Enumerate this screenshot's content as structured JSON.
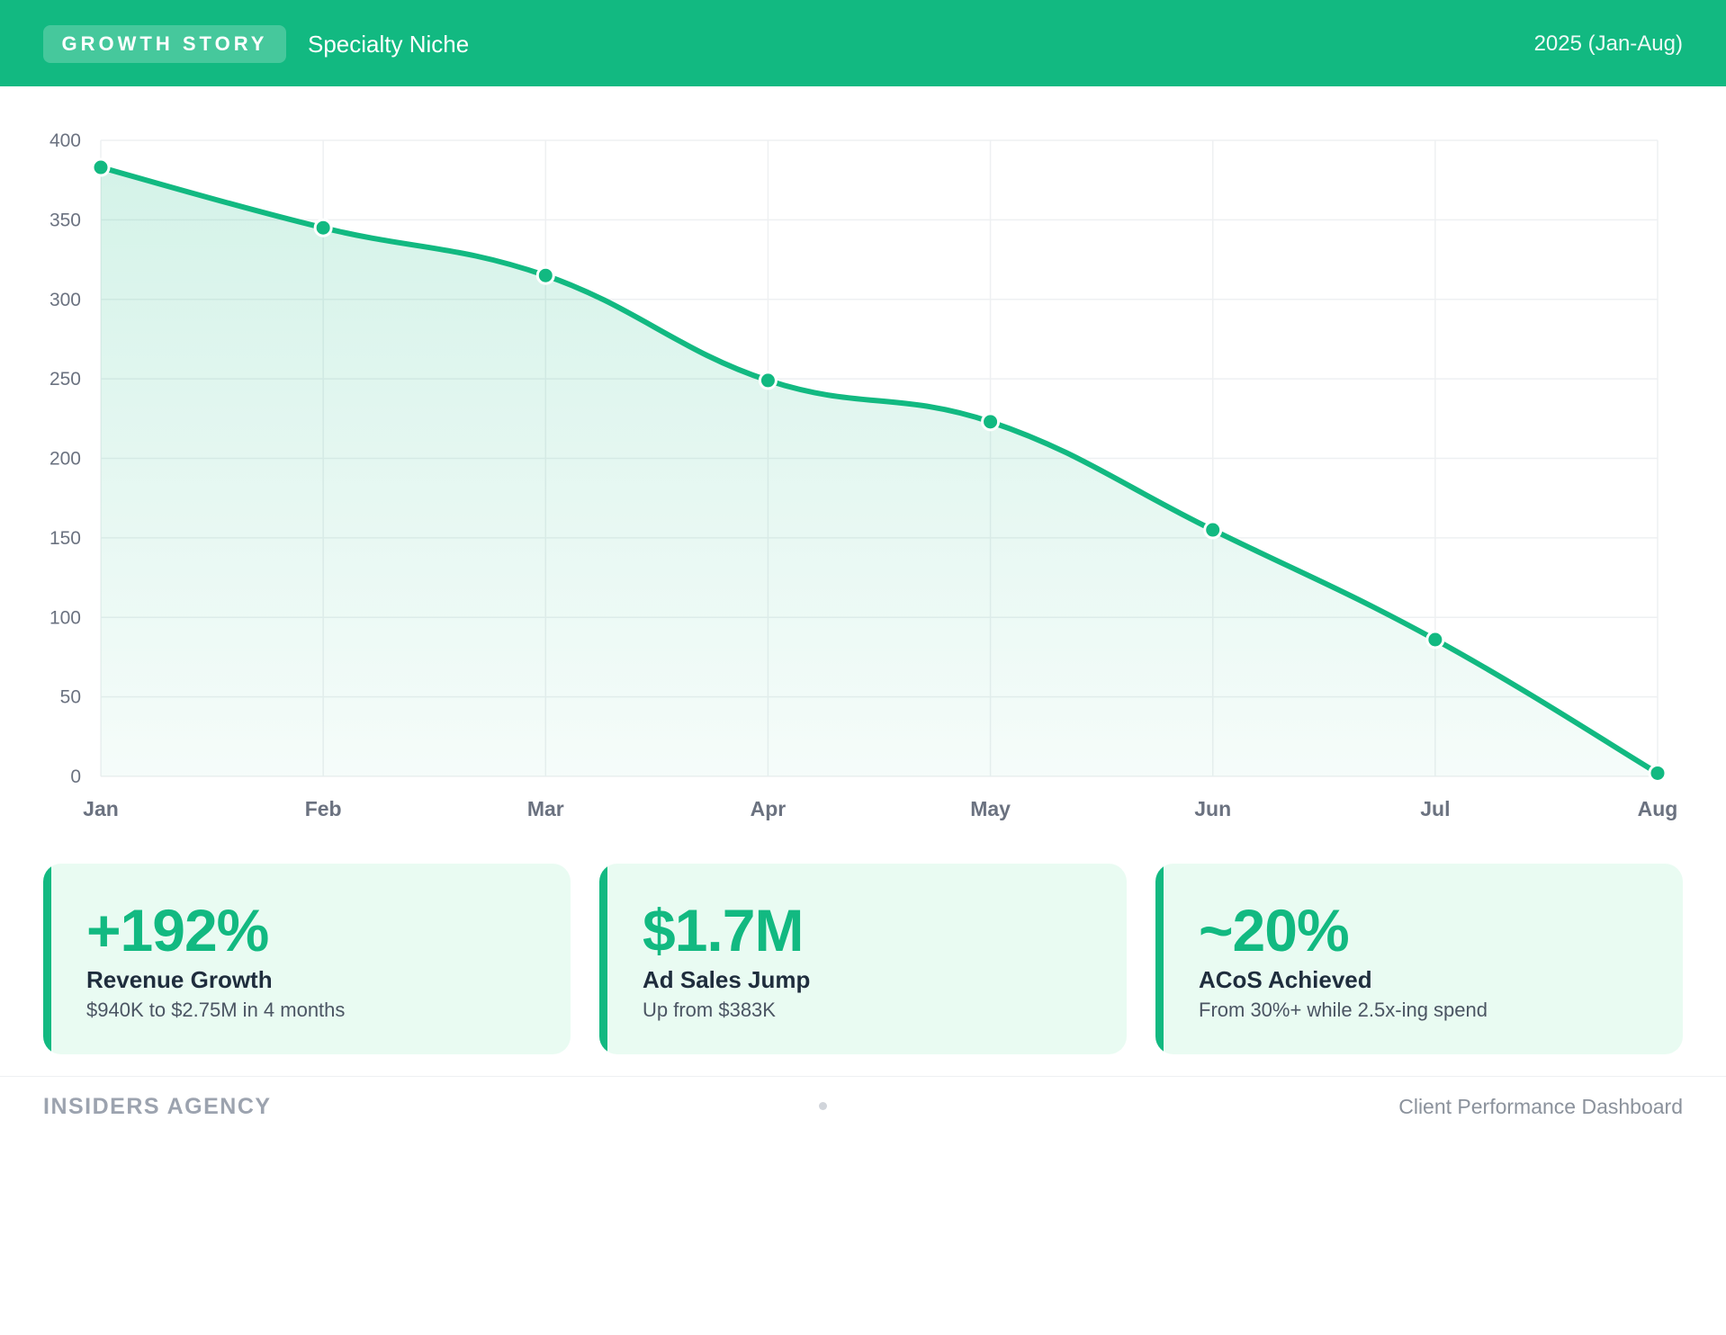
{
  "header": {
    "badge": "GROWTH STORY",
    "niche": "Specialty Niche",
    "period": "2025 (Jan-Aug)"
  },
  "colors": {
    "accent": "#12b981",
    "card_bg": "#e9fbf2",
    "grid": "#eef0f2",
    "muted_text": "#6b7280"
  },
  "chart_data": {
    "type": "area",
    "title": "",
    "xlabel": "",
    "ylabel": "",
    "categories": [
      "Jan",
      "Feb",
      "Mar",
      "Apr",
      "May",
      "Jun",
      "Jul",
      "Aug"
    ],
    "series": [
      {
        "name": "",
        "values": [
          383,
          345,
          315,
          249,
          223,
          155,
          86,
          2
        ]
      }
    ],
    "ylim": [
      0,
      400
    ],
    "yticks": [
      0,
      50,
      100,
      150,
      200,
      250,
      300,
      350,
      400
    ],
    "grid": true,
    "legend": "none",
    "curve": "smooth"
  },
  "cards": [
    {
      "value": "+192%",
      "title": "Revenue Growth",
      "subtitle": "$940K to $2.75M in 4 months"
    },
    {
      "value": "$1.7M",
      "title": "Ad Sales Jump",
      "subtitle": "Up from $383K"
    },
    {
      "value": "~20%",
      "title": "ACoS Achieved",
      "subtitle": "From 30%+ while 2.5x-ing spend"
    }
  ],
  "footer": {
    "left": "INSIDERS AGENCY",
    "right": "Client Performance Dashboard"
  }
}
